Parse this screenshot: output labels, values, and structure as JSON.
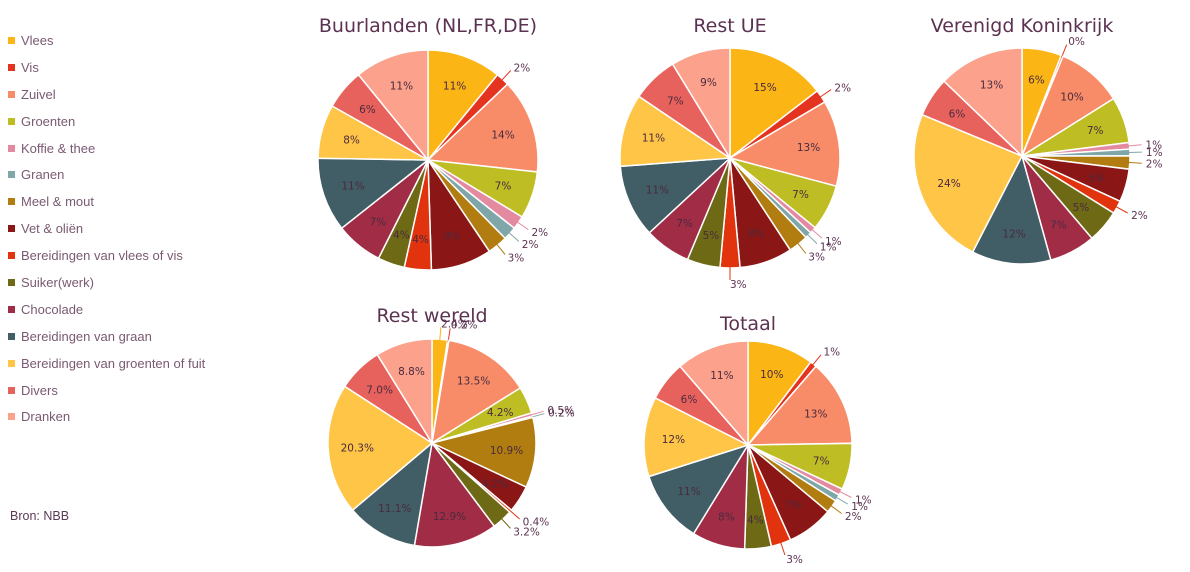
{
  "legend_title": "",
  "source": "Bron: NBB",
  "categories": [
    "Vlees",
    "Vis",
    "Zuivel",
    "Groenten",
    "Koffie & thee",
    "Granen",
    "Meel & mout",
    "Vet & oliën",
    "Bereidingen van vlees of vis",
    "Suiker(werk)",
    "Chocolade",
    "Bereidingen van graan",
    "Bereidingen van groenten of fuit",
    "Divers",
    "Dranken"
  ],
  "colors": [
    "#fbb515",
    "#e4341f",
    "#f98c68",
    "#bfbd24",
    "#e48aa0",
    "#7fa6a8",
    "#b17c10",
    "#8b1616",
    "#e1340e",
    "#6e6914",
    "#a12c46",
    "#415d66",
    "#fec547",
    "#e8625d",
    "#fba18c"
  ],
  "chart_data": [
    {
      "type": "pie",
      "title": "Buurlanden (NL,FR,DE)",
      "categories": [
        "Vlees",
        "Vis",
        "Zuivel",
        "Groenten",
        "Koffie & thee",
        "Granen",
        "Meel & mout",
        "Vet & oliën",
        "Bereidingen van vlees of vis",
        "Suiker(werk)",
        "Chocolade",
        "Bereidingen van graan",
        "Bereidingen van groenten of fuit",
        "Divers",
        "Dranken"
      ],
      "values": [
        11,
        2,
        14,
        7,
        2,
        2,
        3,
        9,
        4,
        4,
        7,
        11,
        8,
        6,
        11
      ],
      "labels": [
        "11%",
        "2%",
        "14%",
        "7%",
        "2%",
        "2%",
        "3%",
        "9%",
        "4%",
        "4%",
        "7%",
        "11%",
        "8%",
        "6%",
        "11%"
      ]
    },
    {
      "type": "pie",
      "title": "Rest UE",
      "categories": [
        "Vlees",
        "Vis",
        "Zuivel",
        "Groenten",
        "Koffie & thee",
        "Granen",
        "Meel & mout",
        "Vet & oliën",
        "Bereidingen van vlees of vis",
        "Suiker(werk)",
        "Chocolade",
        "Bereidingen van graan",
        "Bereidingen van groenten of fuit",
        "Divers",
        "Dranken"
      ],
      "values": [
        15,
        2,
        13,
        7,
        1,
        1,
        3,
        8,
        3,
        5,
        7,
        11,
        11,
        7,
        9
      ],
      "labels": [
        "15%",
        "2%",
        "13%",
        "7%",
        "1%",
        "1%",
        "3%",
        "8%",
        "3%",
        "5%",
        "7%",
        "11%",
        "11%",
        "7%",
        "9%"
      ]
    },
    {
      "type": "pie",
      "title": "Verenigd Koninkrijk",
      "categories": [
        "Vlees",
        "Vis",
        "Zuivel",
        "Groenten",
        "Koffie & thee",
        "Granen",
        "Meel & mout",
        "Vet & oliën",
        "Bereidingen van vlees of vis",
        "Suiker(werk)",
        "Chocolade",
        "Bereidingen van graan",
        "Bereidingen van groenten of fuit",
        "Divers",
        "Dranken"
      ],
      "values": [
        6,
        0.3,
        10,
        7,
        1,
        1,
        2,
        5,
        2,
        5,
        7,
        12,
        24,
        6,
        13
      ],
      "labels": [
        "6%",
        "0%",
        "10%",
        "7%",
        "1%",
        "1%",
        "2%",
        "5%",
        "2%",
        "5%",
        "7%",
        "12%",
        "24%",
        "6%",
        "13%"
      ]
    },
    {
      "type": "pie",
      "title": "Rest wereld",
      "categories": [
        "Vlees",
        "Vis",
        "Zuivel",
        "Groenten",
        "Koffie & thee",
        "Granen",
        "Meel & mout",
        "Vet & oliën",
        "Bereidingen van vlees of vis",
        "Suiker(werk)",
        "Chocolade",
        "Bereidingen van graan",
        "Bereidingen van groenten of fuit",
        "Divers",
        "Dranken"
      ],
      "values": [
        2.4,
        0.2,
        13.5,
        4.2,
        0.5,
        0.2,
        10.9,
        4.2,
        0.4,
        3.2,
        12.9,
        11.1,
        20.3,
        7.0,
        8.8
      ],
      "labels": [
        "2.4%",
        "0.2%",
        "13.5%",
        "4.2%",
        "0.5%",
        "0.2%",
        "10.9%",
        "4.2%",
        "0.4%",
        "3.2%",
        "12.9%",
        "11.1%",
        "20.3%",
        "7.0%",
        "8.8%"
      ]
    },
    {
      "type": "pie",
      "title": "Totaal",
      "categories": [
        "Vlees",
        "Vis",
        "Zuivel",
        "Groenten",
        "Koffie & thee",
        "Granen",
        "Meel & mout",
        "Vet & oliën",
        "Bereidingen van vlees of vis",
        "Suiker(werk)",
        "Chocolade",
        "Bereidingen van graan",
        "Bereidingen van groenten of fuit",
        "Divers",
        "Dranken"
      ],
      "values": [
        10,
        1,
        13,
        7,
        1,
        1,
        2,
        7,
        3,
        4,
        8,
        11,
        12,
        6,
        11
      ],
      "labels": [
        "10%",
        "1%",
        "13%",
        "7%",
        "1%",
        "1%",
        "2%",
        "7%",
        "3%",
        "4%",
        "8%",
        "11%",
        "12%",
        "6%",
        "11%"
      ]
    }
  ]
}
